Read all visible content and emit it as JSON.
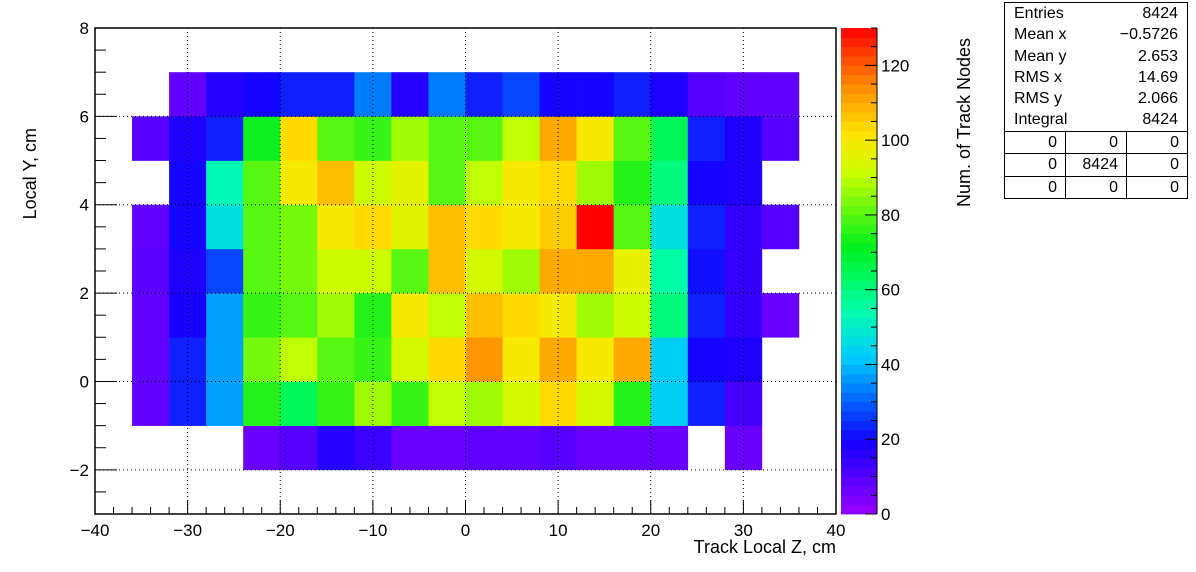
{
  "chart_data": {
    "type": "heatmap",
    "title": "",
    "xlabel": "Track Local Z, cm",
    "ylabel": "Local Y, cm",
    "zlabel": "Num. of Track Nodes",
    "xlim": [
      -40,
      40
    ],
    "ylim": [
      -3,
      8
    ],
    "zlim": [
      0,
      130
    ],
    "grid": true,
    "x_bin_edges": [
      -36,
      -32,
      -28,
      -24,
      -20,
      -16,
      -12,
      -8,
      -4,
      0,
      4,
      8,
      12,
      16,
      20,
      24,
      28,
      32,
      36
    ],
    "y_bin_edges": [
      -2,
      -1,
      0,
      1,
      2,
      3,
      4,
      5,
      6,
      7
    ],
    "x_ticks": [
      -40,
      -30,
      -20,
      -10,
      0,
      10,
      20,
      30,
      40
    ],
    "x_tick_labels": [
      "−40",
      "−30",
      "−20",
      "−10",
      "0",
      "10",
      "20",
      "30",
      "40"
    ],
    "y_ticks": [
      -2,
      0,
      2,
      4,
      6,
      8
    ],
    "y_tick_labels": [
      "−2",
      "0",
      "2",
      "4",
      "6",
      "8"
    ],
    "z_ticks": [
      0,
      20,
      40,
      60,
      80,
      100,
      120
    ],
    "z_tick_labels": [
      "0",
      "20",
      "40",
      "60",
      "80",
      "100",
      "120"
    ],
    "values": [
      [
        0,
        0,
        0,
        7,
        10,
        17,
        14,
        7,
        7,
        8,
        8,
        10,
        7,
        7,
        7,
        0,
        7,
        0
      ],
      [
        8,
        23,
        37,
        75,
        65,
        77,
        87,
        77,
        90,
        87,
        93,
        103,
        93,
        75,
        43,
        23,
        12,
        0
      ],
      [
        8,
        23,
        37,
        83,
        90,
        80,
        77,
        93,
        103,
        113,
        100,
        110,
        100,
        110,
        43,
        20,
        18,
        0
      ],
      [
        8,
        19,
        37,
        77,
        80,
        87,
        75,
        100,
        90,
        107,
        103,
        100,
        87,
        92,
        60,
        23,
        15,
        7
      ],
      [
        9,
        18,
        27,
        80,
        83,
        92,
        92,
        80,
        107,
        93,
        87,
        110,
        110,
        97,
        55,
        21,
        15,
        0
      ],
      [
        8,
        20,
        47,
        80,
        83,
        100,
        103,
        96,
        107,
        103,
        100,
        105,
        130,
        80,
        47,
        23,
        15,
        10
      ],
      [
        0,
        20,
        53,
        80,
        100,
        107,
        92,
        96,
        80,
        90,
        100,
        103,
        87,
        75,
        60,
        20,
        18,
        0
      ],
      [
        10,
        18,
        23,
        73,
        103,
        80,
        77,
        87,
        80,
        80,
        90,
        110,
        100,
        80,
        65,
        23,
        18,
        10
      ],
      [
        0,
        8,
        17,
        20,
        23,
        23,
        33,
        17,
        33,
        23,
        27,
        20,
        20,
        23,
        18,
        10,
        8,
        8
      ]
    ]
  },
  "stats": {
    "rows": [
      {
        "label": "Entries",
        "value": "8424"
      },
      {
        "label": "Mean x",
        "value": "−0.5726"
      },
      {
        "label": "Mean y",
        "value": "2.653"
      },
      {
        "label": "RMS x",
        "value": "14.69"
      },
      {
        "label": "RMS y",
        "value": "2.066"
      },
      {
        "label": "Integral",
        "value": "8424"
      }
    ],
    "matrix": [
      [
        "0",
        "0",
        "0"
      ],
      [
        "0",
        "8424",
        "0"
      ],
      [
        "0",
        "0",
        "0"
      ]
    ]
  }
}
